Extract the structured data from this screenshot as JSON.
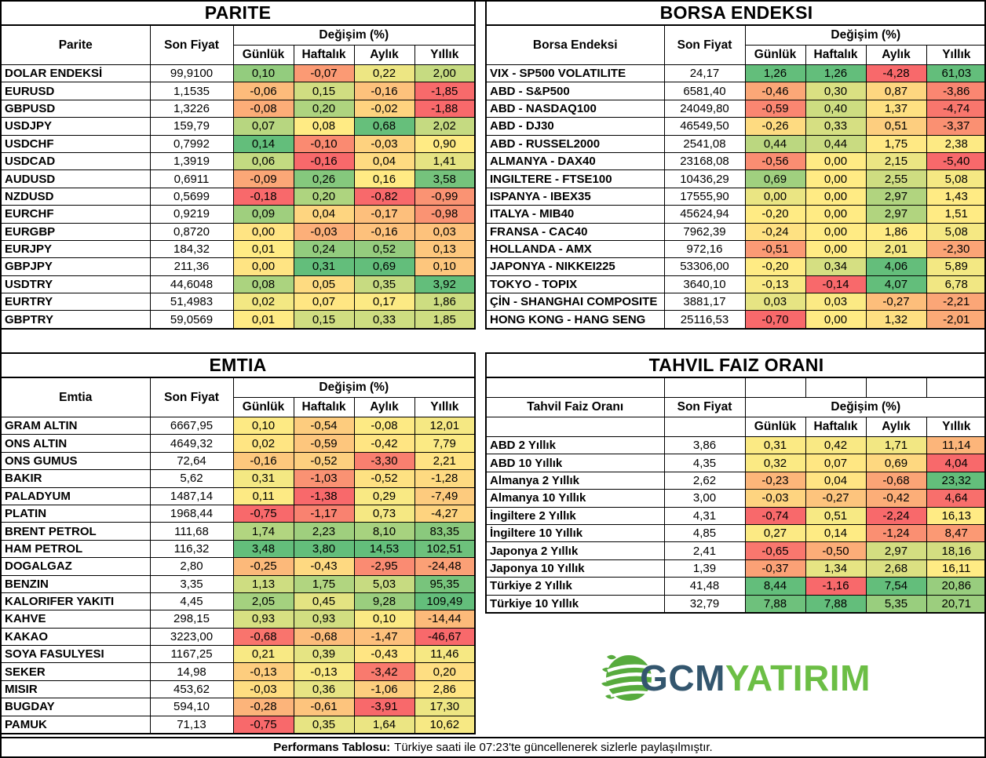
{
  "colors": {
    "scale_min_red": "#F8696B",
    "scale_mid_yellow": "#FFEB84",
    "scale_max_green": "#63BE7B",
    "border": "#000000",
    "logo_slate": "#33566E",
    "logo_green": "#6CBE45",
    "globe_green": "#57AB3D"
  },
  "logo": {
    "gcm": "GCM",
    "yatirim": "YATIRIM"
  },
  "footer": {
    "label": "Performans Tablosu:",
    "text": "Türkiye saati ile 07:23'te güncellenerek sizlerle paylaşılmıştır."
  },
  "tables": {
    "parite": {
      "title": "PARITE",
      "layout": "merged-header",
      "header": {
        "name": "Parite",
        "price": "Son Fiyat",
        "change": "Değişim (%)",
        "periods": [
          "Günlük",
          "Haftalık",
          "Aylık",
          "Yıllık"
        ]
      },
      "rows": [
        [
          "DOLAR ENDEKSİ",
          "99,9100",
          "0,10",
          "-0,07",
          "0,22",
          "2,00"
        ],
        [
          "EURUSD",
          "1,1535",
          "-0,06",
          "0,15",
          "-0,16",
          "-1,85"
        ],
        [
          "GBPUSD",
          "1,3226",
          "-0,08",
          "0,20",
          "-0,02",
          "-1,88"
        ],
        [
          "USDJPY",
          "159,79",
          "0,07",
          "0,08",
          "0,68",
          "2,02"
        ],
        [
          "USDCHF",
          "0,7992",
          "0,14",
          "-0,10",
          "-0,03",
          "0,90"
        ],
        [
          "USDCAD",
          "1,3919",
          "0,06",
          "-0,16",
          "0,04",
          "1,41"
        ],
        [
          "AUDUSD",
          "0,6911",
          "-0,09",
          "0,26",
          "0,16",
          "3,58"
        ],
        [
          "NZDUSD",
          "0,5699",
          "-0,18",
          "0,20",
          "-0,82",
          "-0,99"
        ],
        [
          "EURCHF",
          "0,9219",
          "0,09",
          "0,04",
          "-0,17",
          "-0,98"
        ],
        [
          "EURGBP",
          "0,8720",
          "0,00",
          "-0,03",
          "-0,16",
          "0,03"
        ],
        [
          "EURJPY",
          "184,32",
          "0,01",
          "0,24",
          "0,52",
          "0,13"
        ],
        [
          "GBPJPY",
          "211,36",
          "0,00",
          "0,31",
          "0,69",
          "0,10"
        ],
        [
          "USDTRY",
          "44,6048",
          "0,08",
          "0,05",
          "0,35",
          "3,92"
        ],
        [
          "EURTRY",
          "51,4983",
          "0,02",
          "0,07",
          "0,17",
          "1,86"
        ],
        [
          "GBPTRY",
          "59,0569",
          "0,01",
          "0,15",
          "0,33",
          "1,85"
        ]
      ]
    },
    "borsa": {
      "title": "BORSA ENDEKSI",
      "layout": "merged-header",
      "header": {
        "name": "Borsa Endeksi",
        "price": "Son Fiyat",
        "change": "Değişim (%)",
        "periods": [
          "Günlük",
          "Haftalık",
          "Aylık",
          "Yıllık"
        ]
      },
      "rows": [
        [
          "VIX - SP500 VOLATILITE",
          "24,17",
          "1,26",
          "1,26",
          "-4,28",
          "61,03"
        ],
        [
          "ABD - S&P500",
          "6581,40",
          "-0,46",
          "0,30",
          "0,87",
          "-3,86"
        ],
        [
          "ABD - NASDAQ100",
          "24049,80",
          "-0,59",
          "0,40",
          "1,37",
          "-4,74"
        ],
        [
          "ABD - DJ30",
          "46549,50",
          "-0,26",
          "0,33",
          "0,51",
          "-3,37"
        ],
        [
          "ABD - RUSSEL2000",
          "2541,08",
          "0,44",
          "0,44",
          "1,75",
          "2,38"
        ],
        [
          "ALMANYA - DAX40",
          "23168,08",
          "-0,56",
          "0,00",
          "2,15",
          "-5,40"
        ],
        [
          "INGILTERE - FTSE100",
          "10436,29",
          "0,69",
          "0,00",
          "2,55",
          "5,08"
        ],
        [
          "ISPANYA - IBEX35",
          "17555,90",
          "0,00",
          "0,00",
          "2,97",
          "1,43"
        ],
        [
          "ITALYA - MIB40",
          "45624,94",
          "-0,20",
          "0,00",
          "2,97",
          "1,51"
        ],
        [
          "FRANSA - CAC40",
          "7962,39",
          "-0,24",
          "0,00",
          "1,86",
          "5,08"
        ],
        [
          "HOLLANDA - AMX",
          "972,16",
          "-0,51",
          "0,00",
          "2,01",
          "-2,30"
        ],
        [
          "JAPONYA - NIKKEI225",
          "53306,00",
          "-0,20",
          "0,34",
          "4,06",
          "5,89"
        ],
        [
          "TOKYO - TOPIX",
          "3640,10",
          "-0,13",
          "-0,14",
          "4,07",
          "6,78"
        ],
        [
          "ÇİN - SHANGHAI COMPOSITE",
          "3881,17",
          "0,03",
          "0,03",
          "-0,27",
          "-2,21"
        ],
        [
          "HONG KONG - HANG SENG",
          "25116,53",
          "-0,70",
          "0,00",
          "1,32",
          "-2,01"
        ]
      ]
    },
    "emtia": {
      "title": "EMTIA",
      "layout": "merged-header",
      "header": {
        "name": "Emtia",
        "price": "Son Fiyat",
        "change": "Değişim (%)",
        "periods": [
          "Günlük",
          "Haftalık",
          "Aylık",
          "Yıllık"
        ]
      },
      "rows": [
        [
          "GRAM ALTIN",
          "6667,95",
          "0,10",
          "-0,54",
          "-0,08",
          "12,01"
        ],
        [
          "ONS ALTIN",
          "4649,32",
          "0,02",
          "-0,59",
          "-0,42",
          "7,79"
        ],
        [
          "ONS GUMUS",
          "72,64",
          "-0,16",
          "-0,52",
          "-3,30",
          "2,21"
        ],
        [
          "BAKIR",
          "5,62",
          "0,31",
          "-1,03",
          "-0,52",
          "-1,28"
        ],
        [
          "PALADYUM",
          "1487,14",
          "0,11",
          "-1,38",
          "0,29",
          "-7,49"
        ],
        [
          "PLATIN",
          "1968,44",
          "-0,75",
          "-1,17",
          "0,73",
          "-4,27"
        ],
        [
          "BRENT PETROL",
          "111,68",
          "1,74",
          "2,23",
          "8,10",
          "83,35"
        ],
        [
          "HAM PETROL",
          "116,32",
          "3,48",
          "3,80",
          "14,53",
          "102,51"
        ],
        [
          "DOGALGAZ",
          "2,80",
          "-0,25",
          "-0,43",
          "-2,95",
          "-24,48"
        ],
        [
          "BENZIN",
          "3,35",
          "1,13",
          "1,75",
          "5,03",
          "95,35"
        ],
        [
          "KALORIFER YAKITI",
          "4,45",
          "2,05",
          "0,45",
          "9,28",
          "109,49"
        ],
        [
          "KAHVE",
          "298,15",
          "0,93",
          "0,93",
          "0,10",
          "-14,44"
        ],
        [
          "KAKAO",
          "3223,00",
          "-0,68",
          "-0,68",
          "-1,47",
          "-46,67"
        ],
        [
          "SOYA FASULYESI",
          "1167,25",
          "0,21",
          "0,39",
          "-0,43",
          "11,46"
        ],
        [
          "SEKER",
          "14,98",
          "-0,13",
          "-0,13",
          "-3,42",
          "0,20"
        ],
        [
          "MISIR",
          "453,62",
          "-0,03",
          "0,36",
          "-1,06",
          "2,86"
        ],
        [
          "BUGDAY",
          "594,10",
          "-0,28",
          "-0,61",
          "-3,91",
          "17,30"
        ],
        [
          "PAMUK",
          "71,13",
          "-0,75",
          "0,35",
          "1,64",
          "10,62"
        ]
      ]
    },
    "tahvil": {
      "title": "TAHVIL FAIZ ORANI",
      "layout": "split-header",
      "header": {
        "name": "Tahvil Faiz Oranı",
        "price": "Son Fiyat",
        "change": "Değişim (%)",
        "periods": [
          "Günlük",
          "Haftalık",
          "Aylık",
          "Yıllık"
        ]
      },
      "rows": [
        [
          "ABD 2 Yıllık",
          "3,86",
          "0,31",
          "0,42",
          "1,71",
          "11,14"
        ],
        [
          "ABD 10 Yıllık",
          "4,35",
          "0,32",
          "0,07",
          "0,69",
          "4,04"
        ],
        [
          "Almanya 2 Yıllık",
          "2,62",
          "-0,23",
          "0,04",
          "-0,68",
          "23,32"
        ],
        [
          "Almanya 10 Yıllık",
          "3,00",
          "-0,03",
          "-0,27",
          "-0,42",
          "4,64"
        ],
        [
          "İngiltere 2 Yıllık",
          "4,31",
          "-0,74",
          "0,51",
          "-2,24",
          "16,13"
        ],
        [
          "İngiltere 10 Yıllık",
          "4,85",
          "0,27",
          "0,14",
          "-1,24",
          "8,47"
        ],
        [
          "Japonya 2 Yıllık",
          "2,41",
          "-0,65",
          "-0,50",
          "2,97",
          "18,16"
        ],
        [
          "Japonya 10 Yıllık",
          "1,39",
          "-0,37",
          "1,34",
          "2,68",
          "16,11"
        ],
        [
          "Türkiye 2 Yıllık",
          "41,48",
          "8,44",
          "-1,16",
          "7,54",
          "20,86"
        ],
        [
          "Türkiye 10 Yıllık",
          "32,79",
          "7,88",
          "7,88",
          "5,35",
          "20,71"
        ]
      ]
    }
  }
}
